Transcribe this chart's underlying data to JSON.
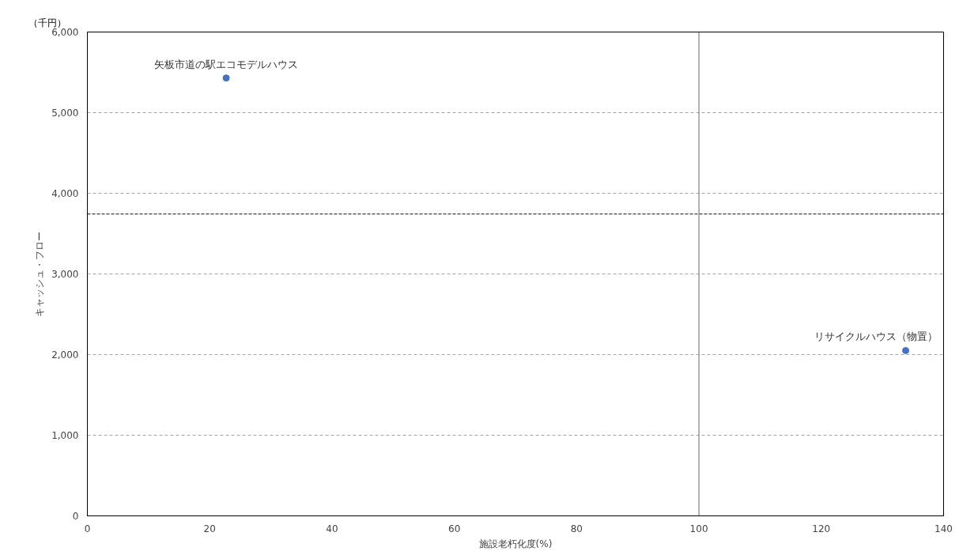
{
  "chart_data": {
    "type": "scatter",
    "xlabel": "施設老朽化度(%)",
    "ylabel": "キャッシュ・フロー",
    "x": [
      22.7,
      133.8
    ],
    "series": [
      {
        "color": "#4472c4",
        "values": [
          5430,
          2050
        ]
      }
    ],
    "marker": "circle",
    "xlim": [
      0,
      140
    ],
    "xticks": [
      0,
      20,
      40,
      60,
      80,
      100,
      120,
      140
    ],
    "ylim": [
      0,
      6000
    ],
    "yticks": [
      0,
      {
        "value": 1000,
        "label": "1,000"
      },
      {
        "value": 2000,
        "label": "2,000"
      },
      {
        "value": 3000,
        "label": "3,000"
      },
      {
        "value": 4000,
        "label": "4,000"
      },
      {
        "value": 5000,
        "label": "5,000"
      },
      {
        "value": 6000,
        "label": "6,000"
      }
    ],
    "grid": "y",
    "ref_lines": [
      {
        "axis": "y",
        "value": 3743,
        "color": "#404040",
        "line_style": "dashed"
      },
      {
        "axis": "x",
        "value": 100,
        "color": "#7f7f7f",
        "line_style": "solid"
      }
    ],
    "annotations": [
      "（千円）",
      {
        "text": "矢板市道の駅エコモデルハウス",
        "x": 22.7,
        "y": 5430
      },
      {
        "text": "リサイクルハウス（物置）",
        "x": 133.8,
        "y": 2050
      }
    ]
  }
}
